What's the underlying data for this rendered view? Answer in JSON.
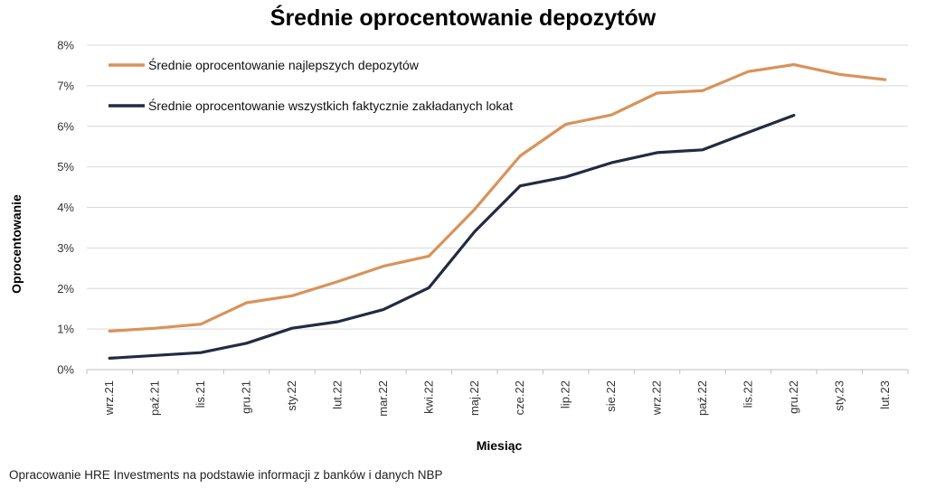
{
  "colors": {
    "best": "#D8935A",
    "all": "#232B42",
    "grid": "#D9D9D9",
    "axis": "#BFBFBF"
  },
  "source_note": "Opracowanie HRE Investments na podstawie informacji z banków i danych NBP",
  "chart_data": {
    "type": "line",
    "title": "Średnie oprocentowanie depozytów",
    "xlabel": "Miesiąc",
    "ylabel": "Oprocentowanie",
    "ylim": [
      0,
      8
    ],
    "yticks": [
      "0%",
      "1%",
      "2%",
      "3%",
      "4%",
      "5%",
      "6%",
      "7%",
      "8%"
    ],
    "grid": true,
    "legend": "top-left",
    "categories": [
      "wrz.21",
      "paź.21",
      "lis.21",
      "gru.21",
      "sty.22",
      "lut.22",
      "mar.22",
      "kwi.22",
      "maj.22",
      "cze.22",
      "lip.22",
      "sie.22",
      "wrz.22",
      "paź.22",
      "lis.22",
      "gru.22",
      "sty.23",
      "lut.23"
    ],
    "series": [
      {
        "name": "Średnie oprocentowanie najlepszych depozytów",
        "color": "#D8935A",
        "values": [
          0.95,
          1.02,
          1.12,
          1.65,
          1.82,
          2.17,
          2.55,
          2.8,
          3.95,
          5.27,
          6.05,
          6.28,
          6.82,
          6.88,
          7.35,
          7.52,
          7.28,
          7.15
        ]
      },
      {
        "name": "Średnie oprocentowanie wszystkich faktycznie zakładanych lokat",
        "color": "#232B42",
        "values": [
          0.28,
          0.35,
          0.42,
          0.65,
          1.02,
          1.18,
          1.48,
          2.02,
          3.4,
          4.53,
          4.75,
          5.1,
          5.35,
          5.42,
          5.85,
          6.27,
          null,
          null
        ]
      }
    ]
  }
}
